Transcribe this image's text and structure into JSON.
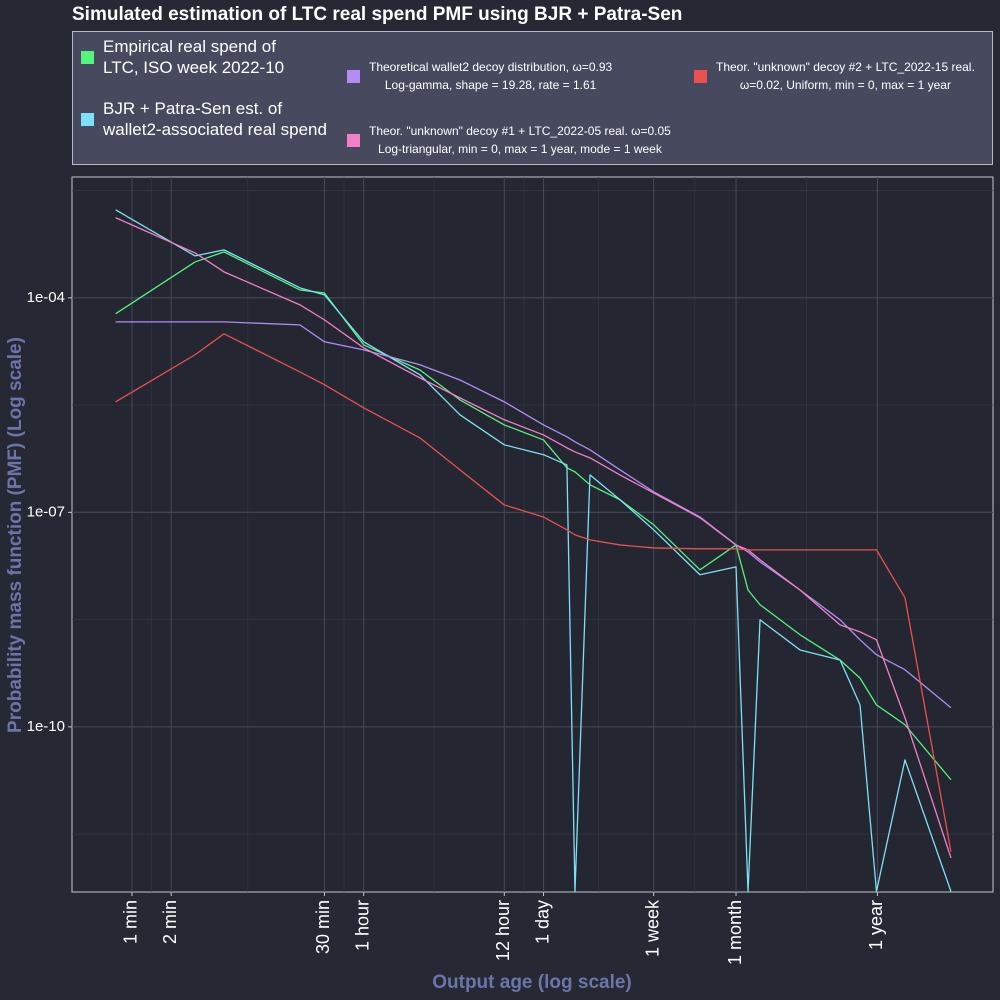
{
  "chart_data": {
    "type": "line",
    "title": "Simulated estimation of LTC real spend PMF using BJR + Patra-Sen",
    "x_label": "Output age (log scale)",
    "y_label": "Probability mass function (PMF) (Log scale)",
    "x_scale": "log",
    "y_scale": "log",
    "grid": true,
    "legend": "top",
    "xlim": [
      20.8,
      243000000
    ],
    "ylim": [
      4.9e-13,
      0.0049
    ],
    "xticks": [
      {
        "value": 60,
        "label": "1 min"
      },
      {
        "value": 120,
        "label": "2 min"
      },
      {
        "value": 1800,
        "label": "30 min"
      },
      {
        "value": 3600,
        "label": "1 hour"
      },
      {
        "value": 43200,
        "label": "12 hour"
      },
      {
        "value": 86400,
        "label": "1 day"
      },
      {
        "value": 604800,
        "label": "1 week"
      },
      {
        "value": 2592000,
        "label": "1 month"
      },
      {
        "value": 31536000,
        "label": "1 year"
      }
    ],
    "yticks": [
      {
        "value": 0.0001,
        "label": "1e-04"
      },
      {
        "value": 1e-07,
        "label": "1e-07"
      },
      {
        "value": 1e-10,
        "label": "1e-10"
      }
    ],
    "x": [
      45,
      183,
      305,
      1167,
      1800,
      3600,
      9730,
      19730,
      43200,
      86400,
      130600,
      150600,
      196300,
      333400,
      604800,
      1371000,
      2592000,
      3205000,
      3962000,
      8035000,
      16290000,
      23190000,
      31000000,
      51300000,
      115600000
    ],
    "series": [
      {
        "name": "Empirical real spend of\nLTC, ISO week 2022-10",
        "color": "#55f27c",
        "values": [
          6e-05,
          0.000318,
          0.000439,
          0.000129,
          0.000117,
          2.2e-05,
          9.8e-06,
          3.74e-06,
          1.67e-06,
          1.03e-06,
          4.2e-07,
          3.68e-07,
          2.43e-07,
          1.5e-07,
          6.7e-08,
          1.57e-08,
          3.5e-08,
          8.2e-09,
          5.1e-09,
          1.94e-09,
          8.6e-10,
          4.8e-10,
          2.03e-10,
          1.07e-10,
          1.82e-11
        ]
      },
      {
        "name": "BJR + Patra-Sen est. of\nwallet2-associated real spend",
        "color": "#7fe1f5",
        "values": [
          0.0017,
          0.000386,
          0.000469,
          0.000138,
          0.00011,
          2.43e-05,
          8.4e-06,
          2.31e-06,
          8.8e-07,
          6.4e-07,
          4.6e-07,
          5e-13,
          3.34e-07,
          1.5e-07,
          5.7e-08,
          1.34e-08,
          1.73e-08,
          5e-13,
          3.14e-09,
          1.19e-09,
          8.6e-10,
          2.03e-10,
          5e-13,
          3.45e-11,
          5e-13
        ]
      },
      {
        "name": "Theoretical wallet2 decoy distribution, ω=0.93\nLog-gamma, shape = 19.28, rate = 1.61",
        "color": "#b48cf5",
        "values": [
          4.61e-05,
          4.61e-05,
          4.61e-05,
          4.19e-05,
          2.43e-05,
          1.87e-05,
          1.16e-05,
          7.1e-06,
          3.51e-06,
          1.67e-06,
          1.14e-06,
          9.7e-07,
          7.5e-07,
          3.93e-07,
          1.94e-07,
          8.6e-08,
          3.5e-08,
          2.8e-08,
          2.03e-08,
          8.2e-09,
          3.14e-09,
          1.65e-09,
          1.02e-09,
          6.3e-10,
          1.85e-10
        ]
      },
      {
        "name": "Theor. \"unknown\" decoy #1 + LTC_2022-05 real. ω=0.05\nLog-triangular, min = 0, max = 1 year, mode = 1 week",
        "color": "#f27fca",
        "values": [
          0.00132,
          0.000425,
          0.000231,
          7.98e-05,
          4.92e-05,
          2e-05,
          7.6e-06,
          3.99e-06,
          1.97e-06,
          1.21e-06,
          7.98e-07,
          7e-07,
          5.78e-07,
          3.34e-07,
          1.87e-07,
          8.4e-08,
          3.5e-08,
          2.99e-08,
          2.17e-08,
          8.2e-09,
          2.67e-09,
          2.13e-09,
          1.65e-09,
          1.34e-10,
          1.47e-12
        ]
      },
      {
        "name": "Theor. \"unknown\" decoy #2 + LTC_2022-15 real.\nω=0.02, Uniform, min = 0, max = 1 year",
        "color": "#ea5150",
        "values": [
          3.51e-06,
          1.6e-05,
          3.14e-05,
          9.2e-06,
          6.1e-06,
          2.9e-06,
          1.1e-06,
          3.93e-07,
          1.27e-07,
          8.6e-08,
          5.7e-08,
          4.84e-08,
          4.12e-08,
          3.5e-08,
          3.18e-08,
          3.09e-08,
          3.09e-08,
          2.99e-08,
          2.99e-08,
          2.99e-08,
          2.99e-08,
          2.99e-08,
          2.99e-08,
          6.4e-09,
          1.79e-12
        ]
      }
    ]
  }
}
